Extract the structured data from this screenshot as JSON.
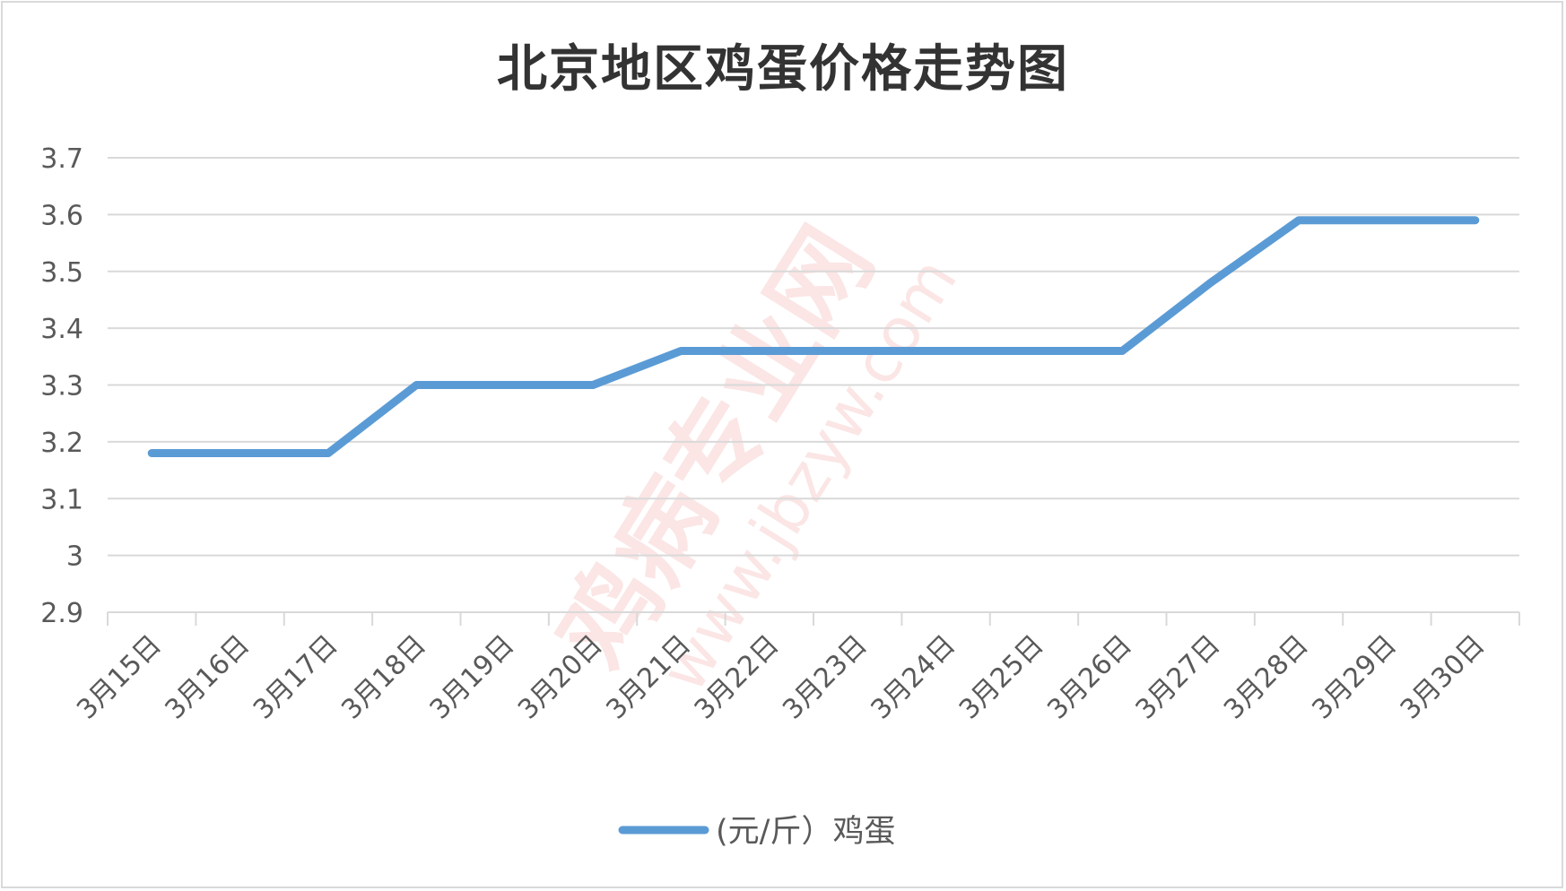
{
  "chart_data": {
    "type": "line",
    "title": "北京地区鸡蛋价格走势图",
    "categories": [
      "3月15日",
      "3月16日",
      "3月17日",
      "3月18日",
      "3月19日",
      "3月20日",
      "3月21日",
      "3月22日",
      "3月23日",
      "3月24日",
      "3月25日",
      "3月26日",
      "3月27日",
      "3月28日",
      "3月29日",
      "3月30日"
    ],
    "series": [
      {
        "name": "(元/斤）鸡蛋",
        "color": "#5b9bd5",
        "values": [
          3.18,
          3.18,
          3.18,
          3.3,
          3.3,
          3.3,
          3.36,
          3.36,
          3.36,
          3.36,
          3.36,
          3.36,
          3.48,
          3.59,
          3.59,
          3.59
        ]
      }
    ],
    "yticks": [
      "2.9",
      "3",
      "3.1",
      "3.2",
      "3.3",
      "3.4",
      "3.5",
      "3.6",
      "3.7"
    ],
    "ylim": [
      2.9,
      3.7
    ],
    "xlabel": "",
    "ylabel": "",
    "grid": true,
    "legend": "bottom"
  },
  "watermark": {
    "text": "鸡病专业网",
    "url": "www.jbzyw.com"
  }
}
